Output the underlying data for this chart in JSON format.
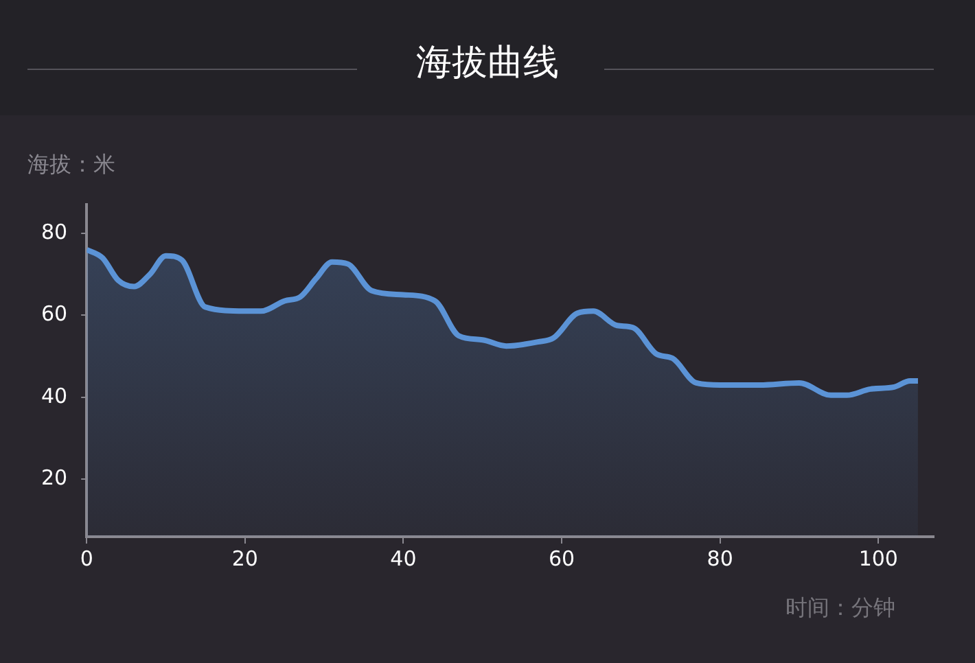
{
  "chart_data": {
    "type": "area",
    "title": "海拔曲线",
    "ylabel": "海拔：米",
    "xlabel": "时间：分钟",
    "x": [
      0,
      2,
      4,
      6,
      8,
      10,
      12,
      15,
      20,
      22,
      25,
      27,
      29,
      31,
      33,
      36,
      40,
      44,
      47,
      50,
      53,
      57,
      59,
      62,
      64,
      67,
      69,
      72,
      74,
      77,
      80,
      85,
      90,
      94,
      96,
      99,
      102,
      104,
      105
    ],
    "series": [
      {
        "color": "#5b93d6",
        "values": [
          76,
          74,
          68.5,
          67,
          70,
          74.5,
          73.5,
          62,
          61,
          61,
          63.5,
          64.5,
          69,
          73,
          72.5,
          66,
          65,
          63.5,
          55,
          54,
          52.5,
          53.5,
          54.5,
          60.5,
          61,
          57.5,
          57,
          50.5,
          49.5,
          43.5,
          43,
          43,
          43.5,
          40.5,
          40.5,
          42,
          42.5,
          44,
          44
        ]
      }
    ],
    "xlim": [
      0,
      107
    ],
    "xticks": [
      0,
      20,
      40,
      60,
      80,
      100
    ],
    "ylim": [
      6,
      87
    ],
    "yticks": [
      20,
      40,
      60,
      80
    ],
    "grid": false,
    "legend": false,
    "marker": "none",
    "line_style": "solid"
  }
}
